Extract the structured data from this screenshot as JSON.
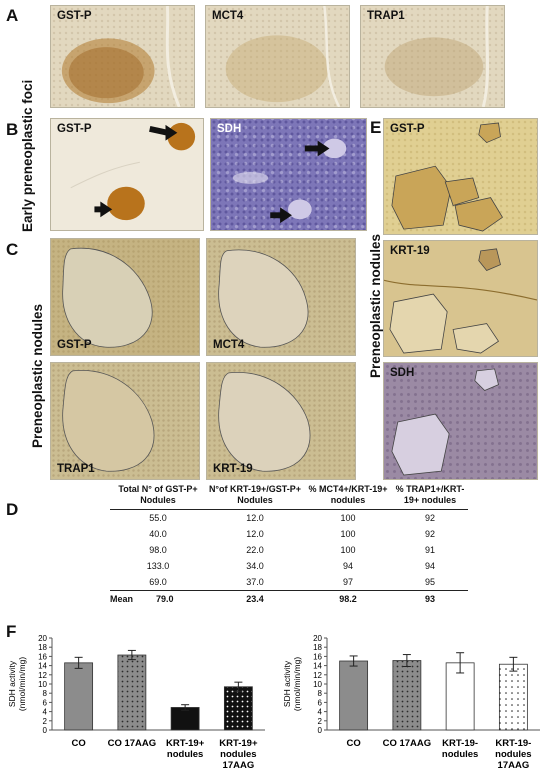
{
  "figure": {
    "panel_labels": {
      "A": "A",
      "B": "B",
      "C": "C",
      "D": "D",
      "E": "E",
      "F": "F"
    },
    "row_labels": {
      "early": "Early preneoplastic foci",
      "nodules_c": "Preneoplastic nodules",
      "nodules_e": "Preneoplastic nodules"
    },
    "panel_a": {
      "tags": [
        "GST-P",
        "MCT4",
        "TRAP1"
      ]
    },
    "panel_b": {
      "tags": [
        "GST-P",
        "SDH"
      ]
    },
    "panel_c": {
      "tags": [
        "GST-P",
        "MCT4",
        "TRAP1",
        "KRT-19"
      ]
    },
    "panel_e": {
      "tags": [
        "GST-P",
        "KRT-19",
        "SDH"
      ]
    },
    "colors": {
      "bar_grey": "#8c8c8c",
      "bar_black": "#111111",
      "bar_white": "#ffffff"
    }
  },
  "table": {
    "headers": [
      "Total N° of GST-P+ Nodules",
      "N°of KRT-19+/GST-P+ Nodules",
      "% MCT4+/KRT-19+ nodules",
      "% TRAP1+/KRT-19+ nodules"
    ],
    "rows": [
      [
        "55.0",
        "12.0",
        "100",
        "92"
      ],
      [
        "40.0",
        "12.0",
        "100",
        "92"
      ],
      [
        "98.0",
        "22.0",
        "100",
        "91"
      ],
      [
        "133.0",
        "34.0",
        "94",
        "94"
      ],
      [
        "69.0",
        "37.0",
        "97",
        "95"
      ]
    ],
    "mean": {
      "label": "Mean",
      "values": [
        "79.0",
        "23.4",
        "98.2",
        "93"
      ]
    }
  },
  "chart_data": [
    {
      "type": "bar",
      "title": "",
      "xlabel": "",
      "ylabel": "SDH activity (nmol/min/mg)",
      "ylim": [
        0,
        20
      ],
      "yticks": [
        "0",
        "2",
        "4",
        "6",
        "8",
        "10",
        "12",
        "14",
        "16",
        "18",
        "20"
      ],
      "categories": [
        "CO",
        "CO 17AAG",
        "KRT-19+ nodules",
        "KRT-19+ nodules 17AAG"
      ],
      "values": [
        14.6,
        16.3,
        4.9,
        9.4
      ],
      "errors": [
        1.2,
        1.0,
        0.6,
        1.0
      ],
      "fills": [
        "solid-grey",
        "dotted-grey",
        "solid-black",
        "dotted-black"
      ],
      "grid": false
    },
    {
      "type": "bar",
      "title": "",
      "xlabel": "",
      "ylabel": "SDH activity (nmol/min/mg)",
      "ylim": [
        0,
        20
      ],
      "yticks": [
        "0",
        "2",
        "4",
        "6",
        "8",
        "10",
        "12",
        "14",
        "16",
        "18",
        "20"
      ],
      "categories": [
        "CO",
        "CO 17AAG",
        "KRT-19- nodules",
        "KRT-19- nodules 17AAG"
      ],
      "values": [
        15.0,
        15.1,
        14.6,
        14.3
      ],
      "errors": [
        1.1,
        1.3,
        2.2,
        1.5
      ],
      "fills": [
        "solid-grey",
        "dotted-grey",
        "solid-white",
        "dotted-white"
      ],
      "grid": false
    }
  ]
}
